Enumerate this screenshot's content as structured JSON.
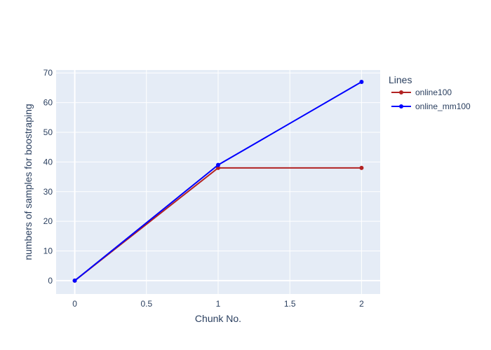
{
  "chart_data": {
    "type": "line",
    "title": "",
    "xlabel": "Chunk No.",
    "ylabel": "numbers of samples for boostraping",
    "xlim": [
      -0.13,
      2.13
    ],
    "ylim": [
      -4.5,
      71
    ],
    "xticks": [
      0,
      0.5,
      1,
      1.5,
      2
    ],
    "xtick_labels": [
      "0",
      "0.5",
      "1",
      "1.5",
      "2"
    ],
    "yticks": [
      0,
      10,
      20,
      30,
      40,
      50,
      60,
      70
    ],
    "ytick_labels": [
      "0",
      "10",
      "20",
      "30",
      "40",
      "50",
      "60",
      "70"
    ],
    "grid": true,
    "legend_title": "Lines",
    "legend_position": "top-right-outside",
    "plot_bgcolor": "#E5ECF6",
    "series": [
      {
        "name": "online100",
        "color": "#B22222",
        "x": [
          0,
          1,
          2
        ],
        "y": [
          0,
          38,
          38
        ]
      },
      {
        "name": "online_mm100",
        "color": "#0000FF",
        "x": [
          0,
          1,
          2
        ],
        "y": [
          0,
          39,
          67
        ]
      }
    ]
  }
}
